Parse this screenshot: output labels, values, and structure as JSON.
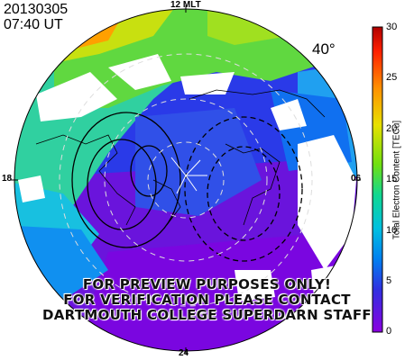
{
  "header": {
    "date": "20130305",
    "time": "07:40 UT"
  },
  "mlt_labels": {
    "top": "12 MLT",
    "left": "18",
    "right": "06",
    "bottom": "24"
  },
  "latitude_label": "40°",
  "colorbar": {
    "label": "Total Electron Content [TECu]",
    "ticks": [
      "30",
      "25",
      "20",
      "15",
      "10",
      "5",
      "0"
    ],
    "colors": [
      "#b00000",
      "#ff3000",
      "#ffa000",
      "#e0e000",
      "#80e000",
      "#20d880",
      "#00c8d8",
      "#0090e8",
      "#2040e0",
      "#6020e0",
      "#8000e0"
    ]
  },
  "watermark": [
    "FOR PREVIEW PURPOSES ONLY!",
    "FOR VERIFICATION PLEASE CONTACT",
    "DARTMOUTH COLLEGE SUPERDARN STAFF"
  ]
}
